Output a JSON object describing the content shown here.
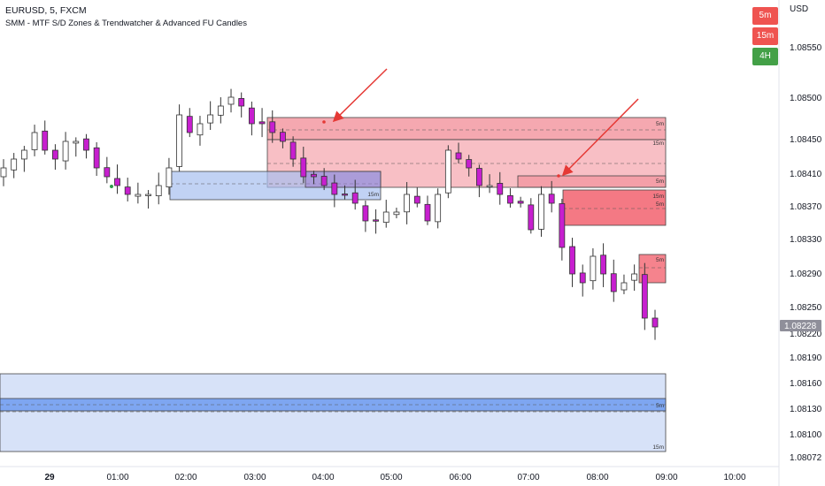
{
  "header": {
    "symbol_line": "EURUSD, 5, FXCM",
    "indicator_line": "SMM - MTF S/D Zones & Trendwatcher & Advanced FU Candles",
    "currency": "USD"
  },
  "timeframe_panel": [
    {
      "label": "5m",
      "color": "#ef5350"
    },
    {
      "label": "15m",
      "color": "#ef5350"
    },
    {
      "label": "4H",
      "color": "#43a047"
    }
  ],
  "price_axis": {
    "labels": [
      "1.08550",
      "1.08500",
      "1.08450",
      "1.08410",
      "1.08370",
      "1.08330",
      "1.08290",
      "1.08250",
      "1.08220",
      "1.08190",
      "1.08160",
      "1.08130",
      "1.08100",
      "1.08072"
    ],
    "current_price": "1.08228"
  },
  "time_axis": {
    "labels": [
      "29",
      "01:00",
      "02:00",
      "03:00",
      "04:00",
      "05:00",
      "06:00",
      "07:00",
      "08:00",
      "09:00",
      "10:00"
    ]
  },
  "zone_labels": {
    "supply_5m_top": "5m",
    "supply_15m_top": "15m",
    "demand_15m": "15m",
    "supply_5m_mid": "5m",
    "supply_15m_mid": "15m",
    "supply_5m_mid2": "5m",
    "supply_5m_low": "5m",
    "demand_5m_bottom": "5m",
    "demand_15m_bottom": "15m"
  },
  "colors": {
    "bull": "#ffffff",
    "bear": "#c71fcf",
    "supply_zone": "#f28b95",
    "demand_zone": "#a7bff0",
    "arrow": "#e53935",
    "price_tag": "#8f8f9a"
  },
  "chart_data": {
    "type": "candlestick",
    "symbol": "EURUSD",
    "interval": "5",
    "last_price": 1.08228,
    "ylim": [
      1.0806,
      1.0858
    ],
    "x_ticks": [
      "29",
      "01:00",
      "02:00",
      "03:00",
      "04:00",
      "05:00",
      "06:00",
      "07:00",
      "08:00",
      "09:00",
      "10:00"
    ],
    "y_ticks": [
      1.0855,
      1.085,
      1.0845,
      1.0841,
      1.0837,
      1.0833,
      1.0829,
      1.0825,
      1.0822,
      1.0819,
      1.0816,
      1.0813,
      1.081,
      1.08072
    ],
    "close_path": [
      1.0841,
      1.0842,
      1.0843,
      1.0845,
      1.0843,
      1.0842,
      1.0844,
      1.0844,
      1.0843,
      1.0841,
      1.084,
      1.0839,
      1.0838,
      1.0838,
      1.0838,
      1.0839,
      1.0841,
      1.0847,
      1.0845,
      1.0846,
      1.0847,
      1.0848,
      1.0849,
      1.0848,
      1.0846,
      1.0846,
      1.0845,
      1.0844,
      1.0842,
      1.084,
      1.084,
      1.0839,
      1.0838,
      1.0838,
      1.0837,
      1.0835,
      1.0835,
      1.0836,
      1.0836,
      1.0838,
      1.0837,
      1.0835,
      1.0838,
      1.0843,
      1.0842,
      1.0841,
      1.0839,
      1.0839,
      1.0838,
      1.0837,
      1.0837,
      1.0834,
      1.0838,
      1.0837,
      1.0832,
      1.0829,
      1.0828,
      1.0831,
      1.0829,
      1.0827,
      1.0828,
      1.0829,
      1.0824,
      1.0823
    ]
  }
}
